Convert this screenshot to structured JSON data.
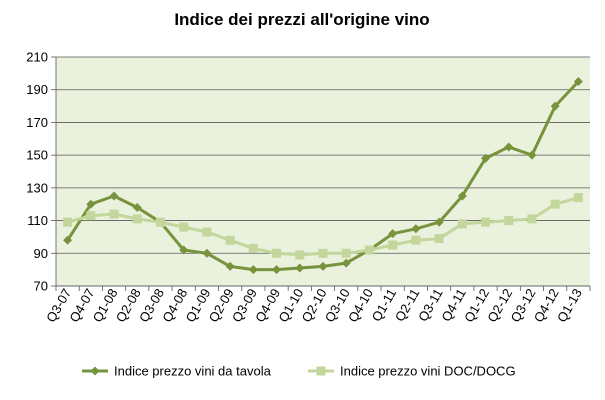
{
  "chart_data": {
    "type": "line",
    "title": "Indice dei prezzi all'origine vino",
    "xlabel": "",
    "ylabel": "",
    "ylim": [
      70,
      210
    ],
    "yticks": [
      70,
      90,
      110,
      130,
      150,
      170,
      190,
      210
    ],
    "grid": true,
    "legend_position": "bottom",
    "categories": [
      "Q3-07",
      "Q4-07",
      "Q1-08",
      "Q2-08",
      "Q3-08",
      "Q4-08",
      "Q1-09",
      "Q2-09",
      "Q3-09",
      "Q4-09",
      "Q1-10",
      "Q2-10",
      "Q3-10",
      "Q4-10",
      "Q1-11",
      "Q2-11",
      "Q3-11",
      "Q4-11",
      "Q1-12",
      "Q2-12",
      "Q3-12",
      "Q4-12",
      "Q1-13"
    ],
    "series": [
      {
        "name": "Indice prezzo vini da tavola",
        "color": "#77933c",
        "marker": "diamond",
        "values": [
          98,
          120,
          125,
          118,
          109,
          92,
          90,
          82,
          80,
          80,
          81,
          82,
          84,
          92,
          102,
          105,
          109,
          125,
          148,
          155,
          150,
          180,
          195
        ]
      },
      {
        "name": "Indice prezzo vini DOC/DOCG",
        "color": "#c3d69b",
        "marker": "square",
        "values": [
          109,
          113,
          114,
          111,
          109,
          106,
          103,
          98,
          93,
          90,
          89,
          90,
          90,
          92,
          95,
          98,
          99,
          108,
          109,
          110,
          111,
          120,
          124
        ]
      }
    ]
  },
  "colors": {
    "plot_background": "#eaf1dd",
    "gridline": "#595959"
  }
}
